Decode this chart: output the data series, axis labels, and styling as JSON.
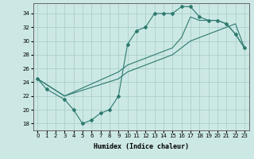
{
  "xlabel": "Humidex (Indice chaleur)",
  "background_color": "#cce8e5",
  "line_color": "#2d7a6e",
  "grid_color": "#aacfcc",
  "xlim": [
    -0.5,
    23.5
  ],
  "ylim": [
    17,
    35.5
  ],
  "yticks": [
    18,
    20,
    22,
    24,
    26,
    28,
    30,
    32,
    34
  ],
  "xticks": [
    0,
    1,
    2,
    3,
    4,
    5,
    6,
    7,
    8,
    9,
    10,
    11,
    12,
    13,
    14,
    15,
    16,
    17,
    18,
    19,
    20,
    21,
    22,
    23
  ],
  "line1_x": [
    0,
    1,
    3,
    4,
    5,
    6,
    7,
    8,
    9,
    10,
    11,
    12,
    13,
    14,
    15,
    16,
    17,
    18,
    19,
    20,
    21,
    22,
    23
  ],
  "line1_y": [
    24.5,
    23,
    21.5,
    20,
    18,
    18.5,
    19.5,
    20,
    22,
    29.5,
    31.5,
    32,
    34,
    34,
    34,
    35,
    35,
    33.5,
    33,
    33,
    32.5,
    31,
    29
  ],
  "line2_x": [
    0,
    3,
    9,
    10,
    11,
    12,
    13,
    14,
    15,
    16,
    17,
    18,
    19,
    20,
    21,
    22,
    23
  ],
  "line2_y": [
    24.5,
    22,
    25.5,
    26.5,
    27.0,
    27.5,
    28.0,
    28.5,
    29.0,
    30.5,
    33.5,
    33.0,
    33.0,
    33.0,
    32.5,
    31.0,
    29
  ],
  "line3_x": [
    0,
    3,
    9,
    10,
    11,
    12,
    13,
    14,
    15,
    16,
    17,
    18,
    19,
    20,
    21,
    22,
    23
  ],
  "line3_y": [
    24.5,
    22,
    24.5,
    25.5,
    26.0,
    26.5,
    27.0,
    27.5,
    28.0,
    29.0,
    30.0,
    30.5,
    31.0,
    31.5,
    32.0,
    32.5,
    29
  ]
}
